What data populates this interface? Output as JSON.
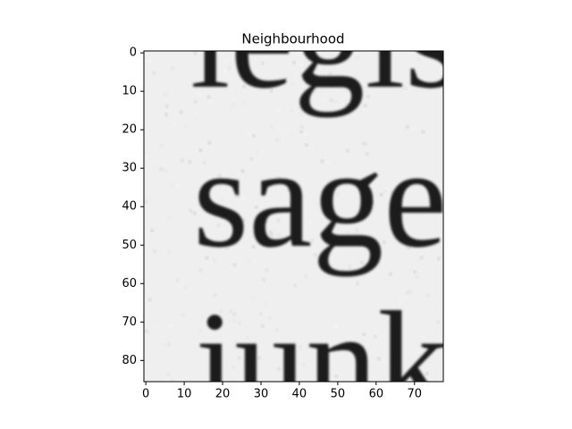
{
  "chart_data": {
    "type": "image",
    "title": "Neighbourhood",
    "image_text": [
      "legis",
      "sage",
      "junk"
    ],
    "xlim": [
      -0.5,
      77.5
    ],
    "ylim": [
      85.5,
      -0.5
    ],
    "xticks": [
      0,
      10,
      20,
      30,
      40,
      50,
      60,
      70
    ],
    "yticks": [
      0,
      10,
      20,
      30,
      40,
      50,
      60,
      70,
      80
    ]
  }
}
